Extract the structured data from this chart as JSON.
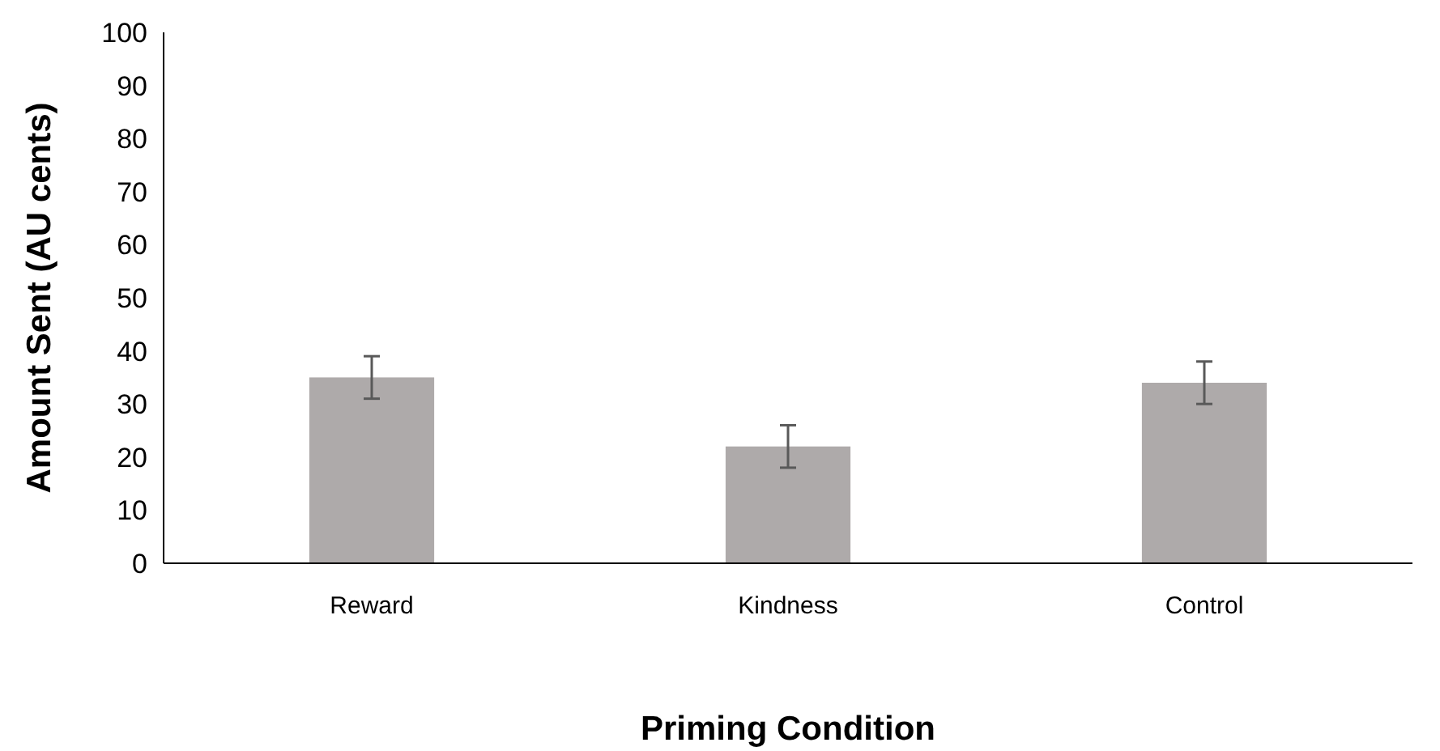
{
  "chart_data": {
    "type": "bar",
    "xlabel": "Priming Condition",
    "ylabel": "Amount Sent (AU cents)",
    "categories": [
      "Reward",
      "Kindness",
      "Control"
    ],
    "values": [
      35,
      22,
      34
    ],
    "errors": [
      4,
      4,
      4
    ],
    "color": "#aeaaaa",
    "ylim": [
      0,
      100
    ],
    "yticks": [
      0,
      10,
      20,
      30,
      40,
      50,
      60,
      70,
      80,
      90,
      100
    ],
    "grid": false
  }
}
